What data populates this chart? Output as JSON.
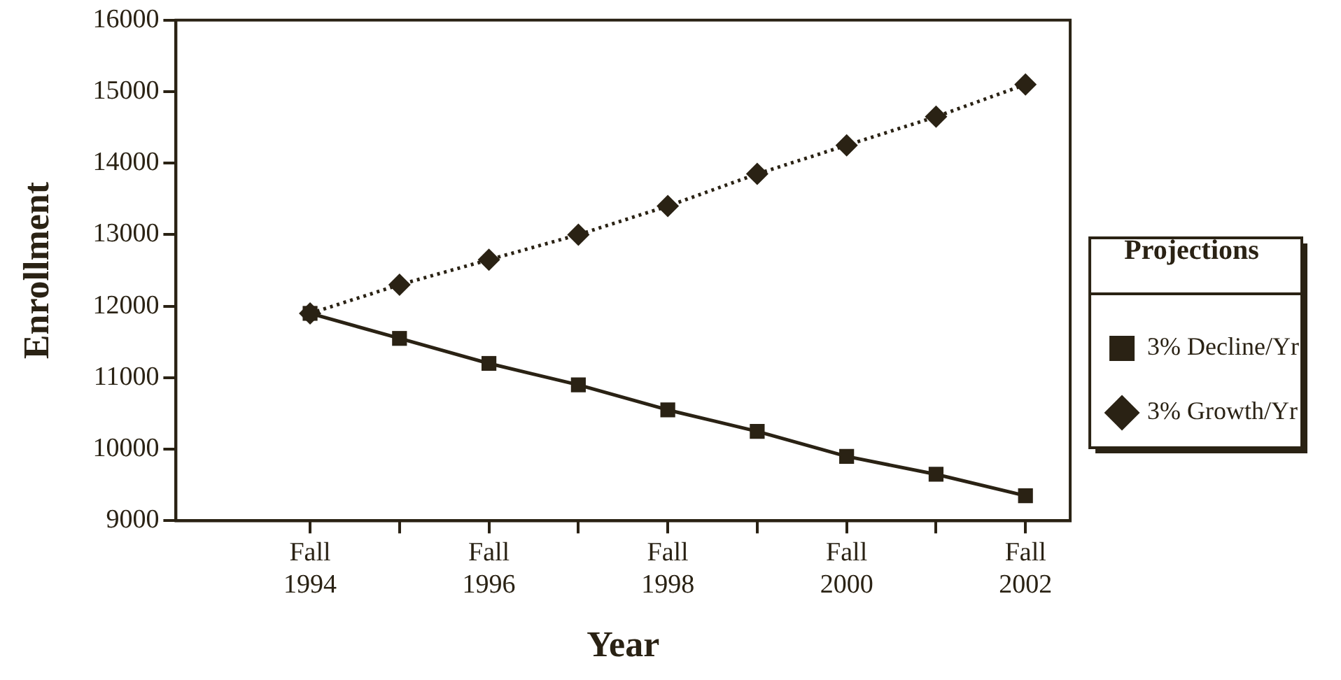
{
  "chart_data": {
    "type": "line",
    "xlabel": "Year",
    "ylabel": "Enrollment",
    "legend_title": "Projections",
    "legend": "right",
    "categories": [
      "Fall 1994",
      null,
      "Fall 1996",
      null,
      "Fall 1998",
      null,
      "Fall 2000",
      null,
      "Fall 2002"
    ],
    "ylim": [
      9000,
      16000
    ],
    "yticks": [
      9000,
      10000,
      11000,
      12000,
      13000,
      14000,
      15000,
      16000
    ],
    "series": [
      {
        "name": "3% Decline/Yr",
        "color": "#2a2214",
        "marker": "square",
        "line_style": "solid",
        "values": [
          11900,
          11550,
          11200,
          10900,
          10550,
          10250,
          9900,
          9650,
          9350
        ]
      },
      {
        "name": "3% Growth/Yr",
        "color": "#2a2214",
        "marker": "diamond",
        "line_style": "dotted",
        "values": [
          11900,
          12300,
          12650,
          13000,
          13400,
          13850,
          14250,
          14650,
          15100
        ]
      }
    ]
  }
}
